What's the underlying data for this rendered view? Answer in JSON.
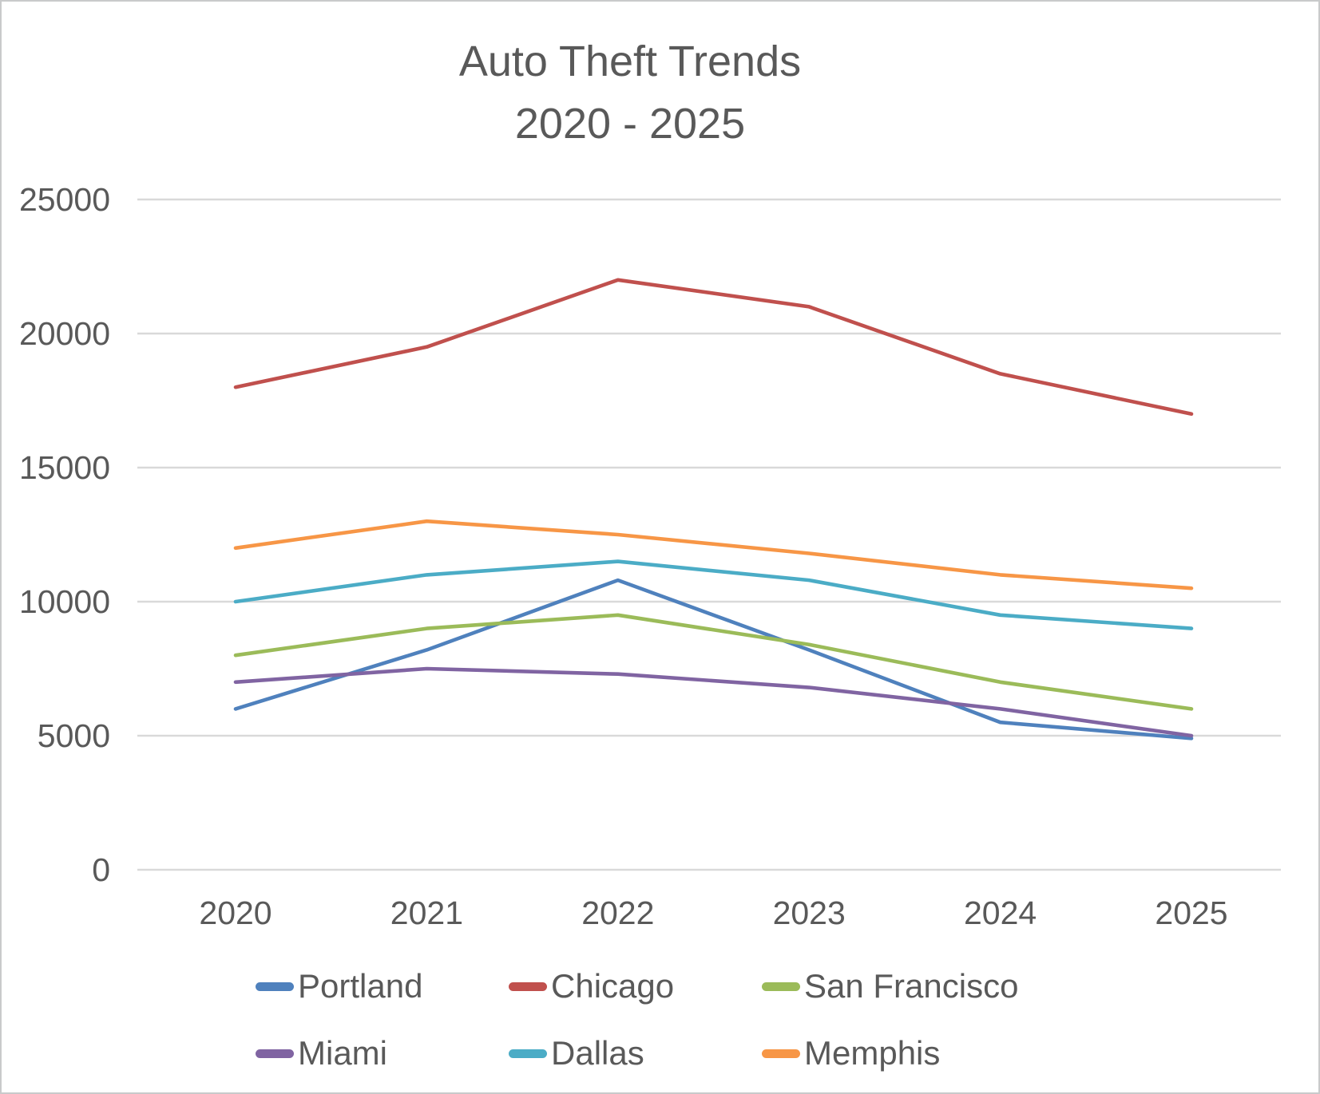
{
  "title": {
    "line1": "Auto Theft Trends",
    "line2": "2020 - 2025"
  },
  "chart_data": {
    "type": "line",
    "x": [
      "2020",
      "2021",
      "2022",
      "2023",
      "2024",
      "2025"
    ],
    "series": [
      {
        "name": "Portland",
        "color": "#4F81BD",
        "values": [
          6000,
          8200,
          10800,
          8200,
          5500,
          4900
        ]
      },
      {
        "name": "Chicago",
        "color": "#C0504D",
        "values": [
          18000,
          19500,
          22000,
          21000,
          18500,
          17000
        ]
      },
      {
        "name": "San Francisco",
        "color": "#9BBB59",
        "values": [
          8000,
          9000,
          9500,
          8400,
          7000,
          6000
        ]
      },
      {
        "name": "Miami",
        "color": "#8064A2",
        "values": [
          7000,
          7500,
          7300,
          6800,
          6000,
          5000
        ]
      },
      {
        "name": "Dallas",
        "color": "#4BACC6",
        "values": [
          10000,
          11000,
          11500,
          10800,
          9500,
          9000
        ]
      },
      {
        "name": "Memphis",
        "color": "#F79646",
        "values": [
          12000,
          13000,
          12500,
          11800,
          11000,
          10500
        ]
      }
    ],
    "yticks": [
      0,
      5000,
      10000,
      15000,
      20000,
      25000
    ],
    "ylim": [
      0,
      25000
    ],
    "grid": true,
    "legend_position": "bottom",
    "legend_rows": [
      [
        "Portland",
        "Chicago",
        "San Francisco"
      ],
      [
        "Miami",
        "Dallas",
        "Memphis"
      ]
    ]
  },
  "colors": {
    "gridline": "#D9D9D9",
    "text": "#595959",
    "background": "#FFFFFF",
    "frame_border": "#C9CACB"
  }
}
